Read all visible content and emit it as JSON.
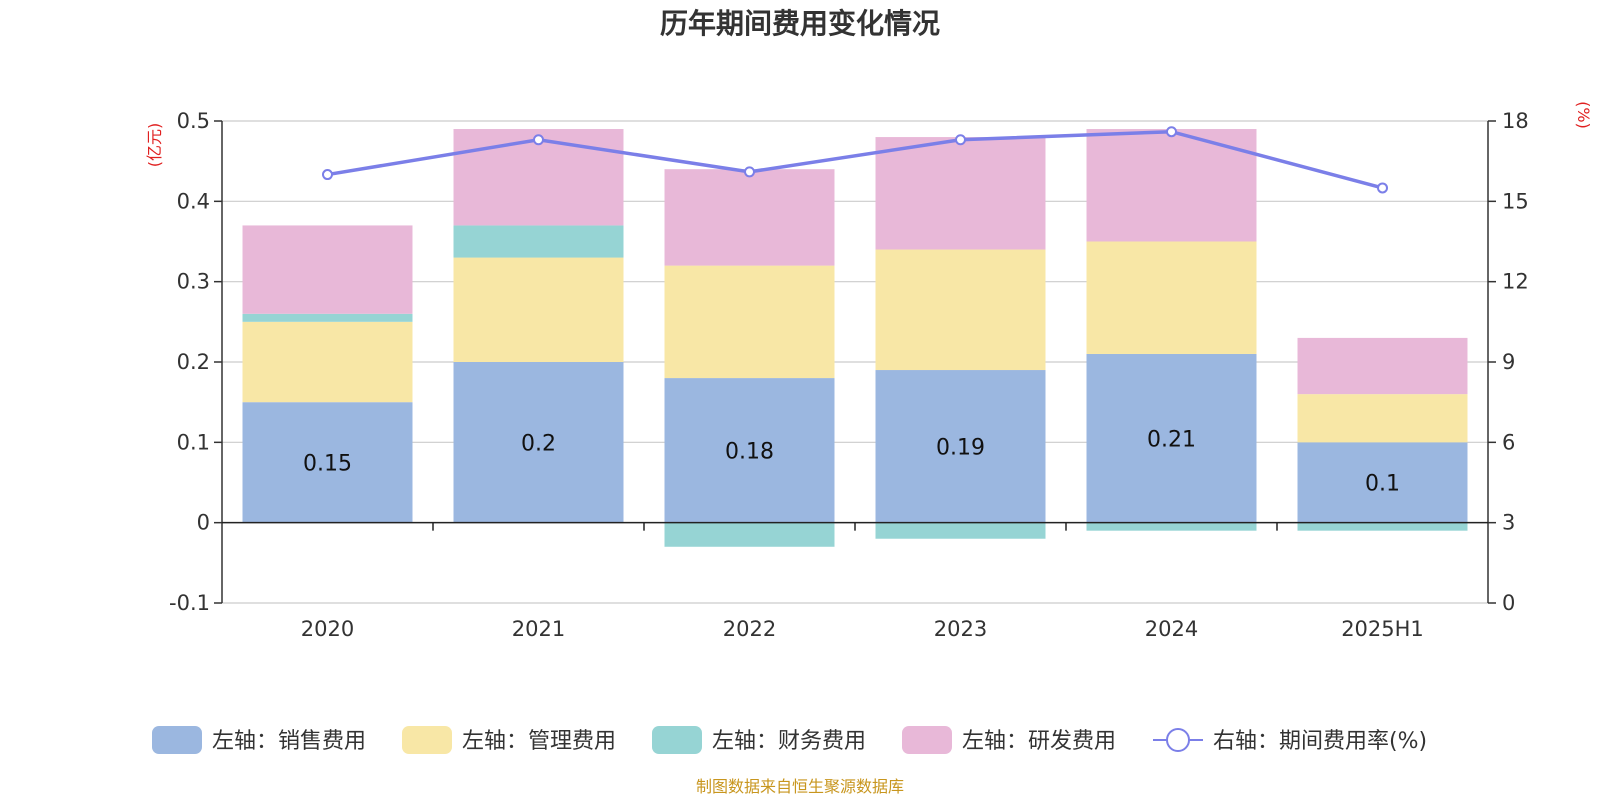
{
  "chart_data": {
    "type": "bar",
    "title": "历年期间费用变化情况",
    "categories": [
      "2020",
      "2021",
      "2022",
      "2023",
      "2024",
      "2025H1"
    ],
    "left_axis": {
      "unit": "(亿元)",
      "ylim": [
        -0.1,
        0.5
      ],
      "ticks": [
        -0.1,
        0,
        0.1,
        0.2,
        0.3,
        0.4,
        0.5
      ],
      "tick_labels": [
        "-0.1",
        "0",
        "0.1",
        "0.2",
        "0.3",
        "0.4",
        "0.5"
      ]
    },
    "right_axis": {
      "unit": "(%)",
      "ylim": [
        0,
        18
      ],
      "ticks": [
        0,
        3,
        6,
        9,
        12,
        15,
        18
      ],
      "tick_labels": [
        "0",
        "3",
        "6",
        "9",
        "12",
        "15",
        "18"
      ]
    },
    "grid": true,
    "legend_position": "bottom",
    "series": [
      {
        "name": "左轴：销售费用",
        "type": "bar",
        "axis": "left",
        "color": "#9bb7e0",
        "values": [
          0.15,
          0.2,
          0.18,
          0.19,
          0.21,
          0.1
        ],
        "data_labels": [
          "0.15",
          "0.2",
          "0.18",
          "0.19",
          "0.21",
          "0.1"
        ]
      },
      {
        "name": "左轴：管理费用",
        "type": "bar",
        "axis": "left",
        "color": "#f8e7a6",
        "values": [
          0.1,
          0.13,
          0.14,
          0.15,
          0.14,
          0.06
        ]
      },
      {
        "name": "左轴：财务费用",
        "type": "bar",
        "axis": "left",
        "color": "#96d4d4",
        "values": [
          0.01,
          0.04,
          -0.03,
          -0.02,
          -0.01,
          -0.01
        ]
      },
      {
        "name": "左轴：研发费用",
        "type": "bar",
        "axis": "left",
        "color": "#e8b8d8",
        "values": [
          0.11,
          0.12,
          0.12,
          0.14,
          0.14,
          0.07
        ]
      },
      {
        "name": "右轴：期间费用率(%)",
        "type": "line",
        "axis": "right",
        "color": "#7b7fe8",
        "values": [
          16.0,
          17.3,
          16.1,
          17.3,
          17.6,
          15.5
        ]
      }
    ],
    "source": "制图数据来自恒生聚源数据库"
  }
}
